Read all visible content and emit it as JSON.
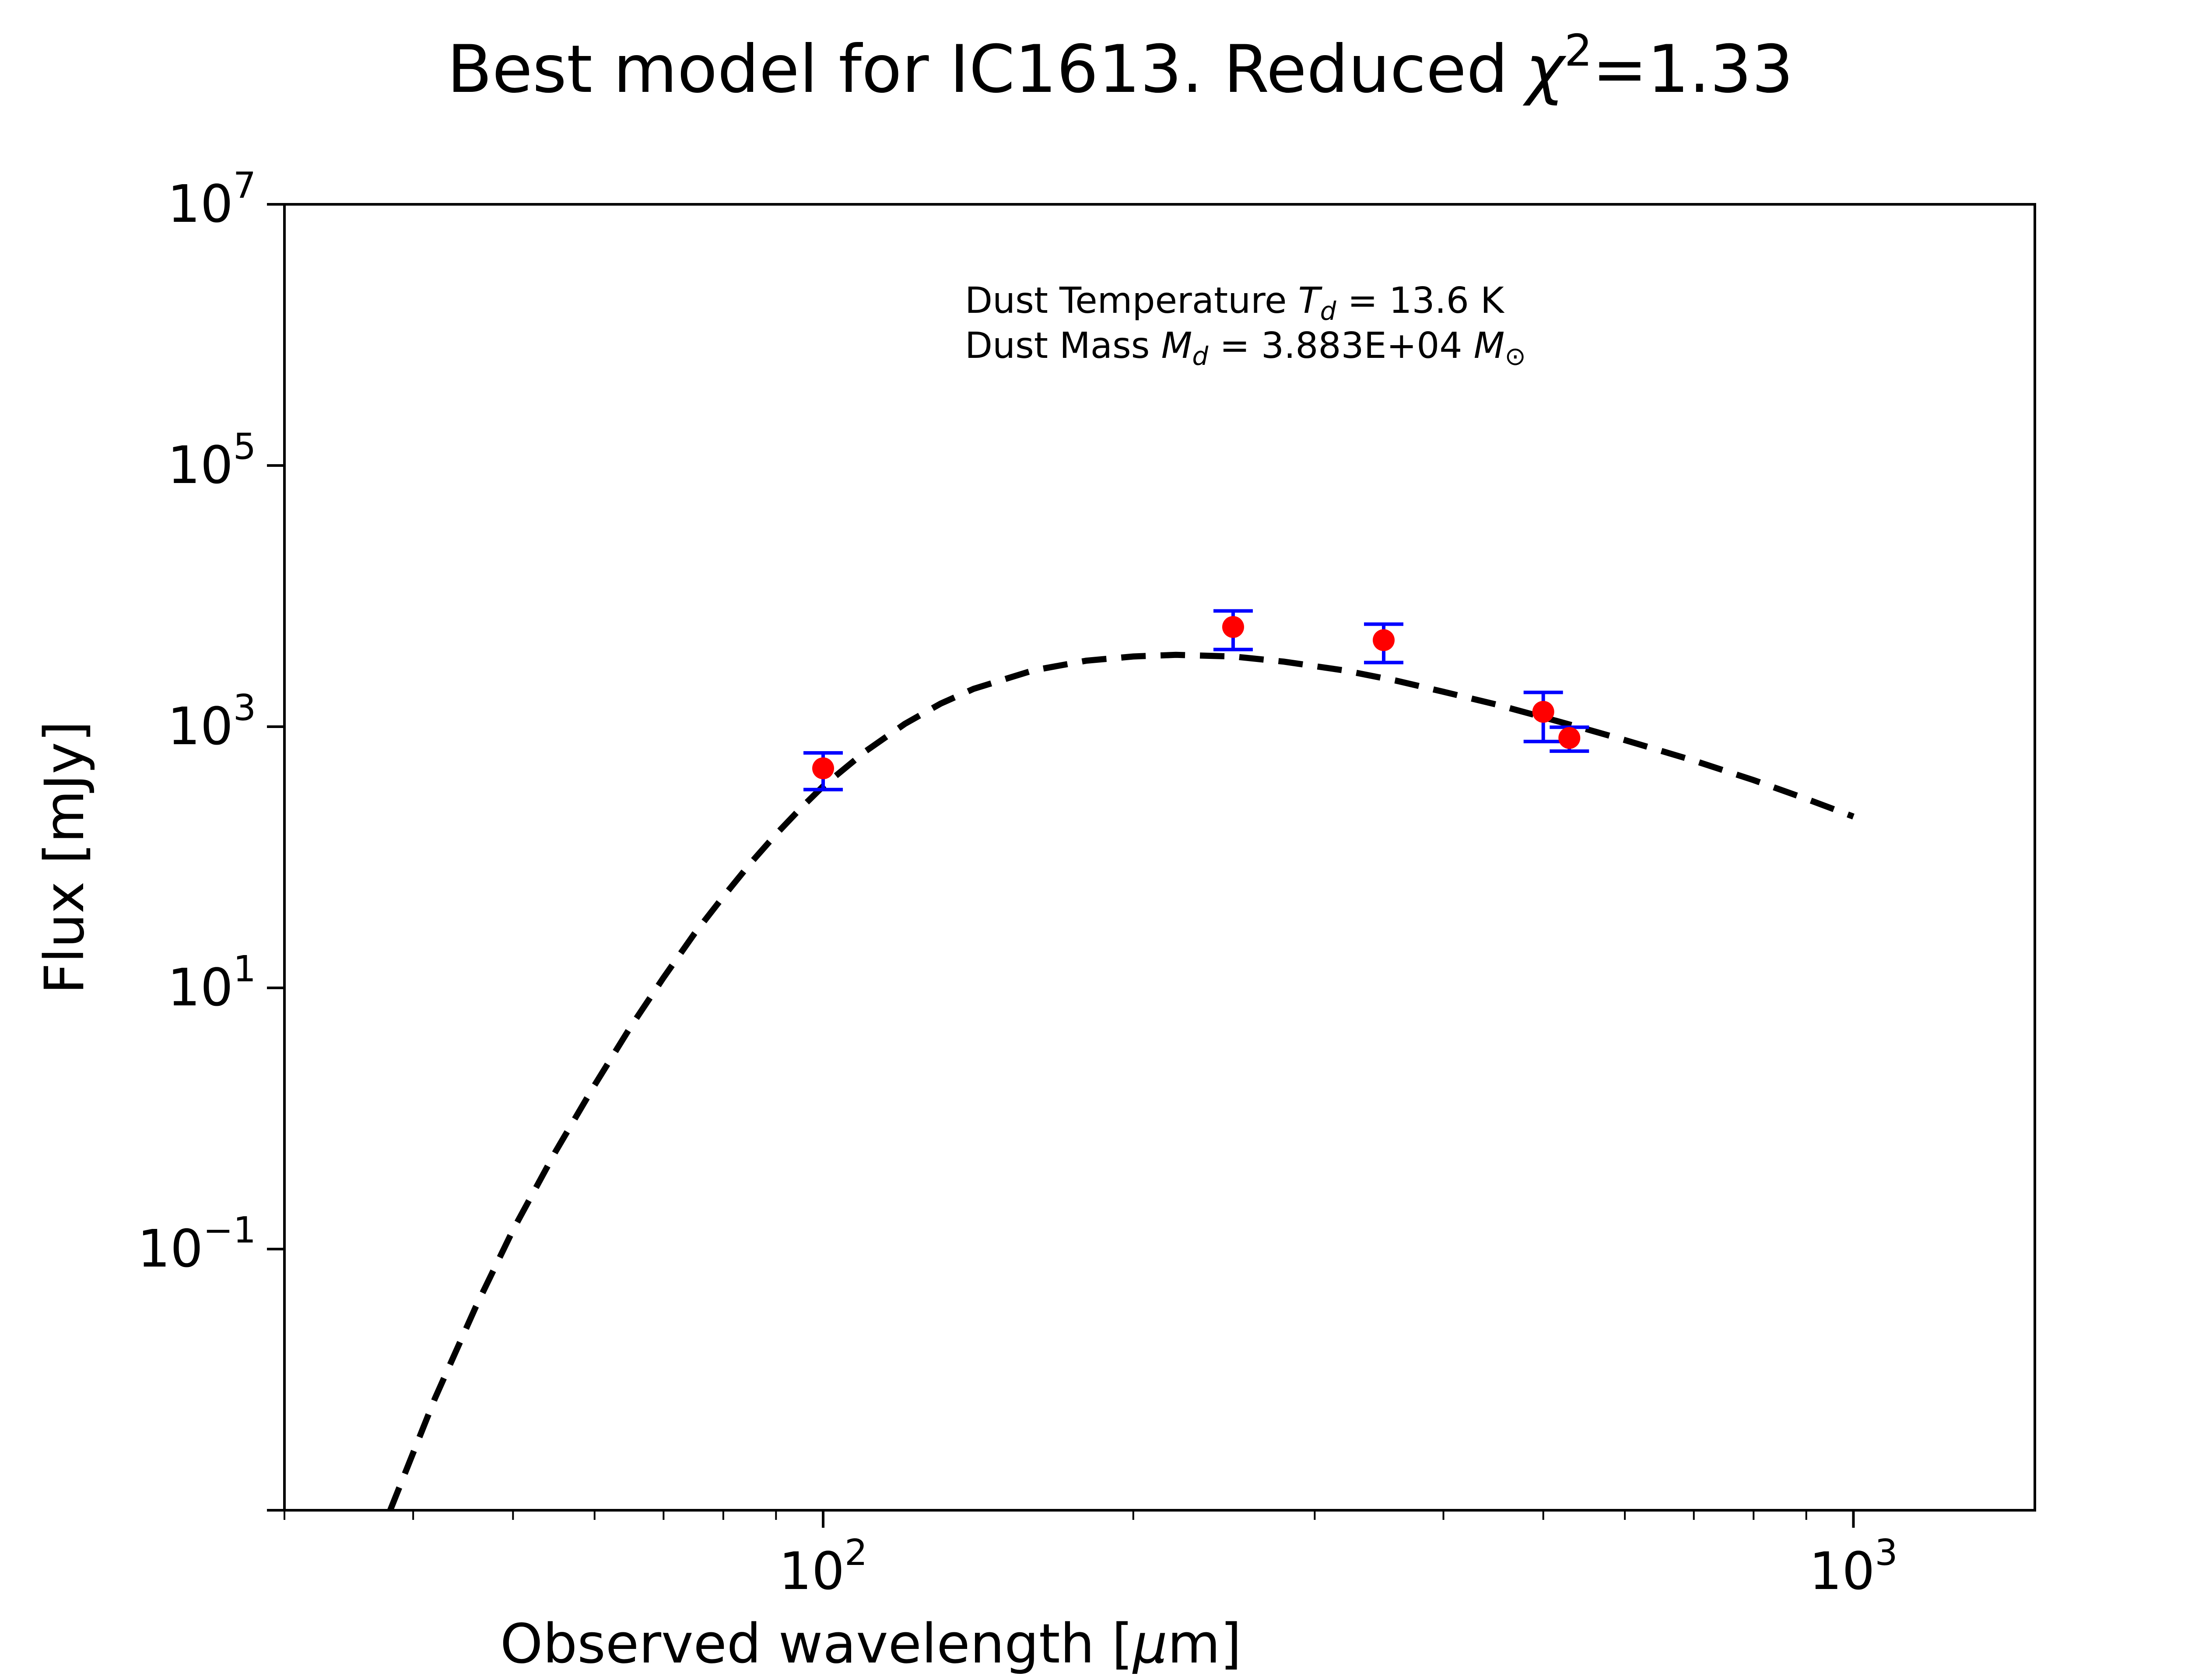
{
  "chart_data": {
    "type": "scatter",
    "title": "Best model for IC1613. Reduced",
    "title_symbol": "χ",
    "title_exponent": "2",
    "title_value": "=1.33",
    "xlabel": "Observed wavelength [",
    "xlabel_unit": "μ",
    "xlabel_suffix": "m]",
    "ylabel": "Flux [mJy]",
    "x_scale": "log",
    "y_scale": "log",
    "xlim": [
      30,
      1500
    ],
    "ylim": [
      0.001,
      10000000
    ],
    "grid": false,
    "x_ticks": [
      {
        "base": "10",
        "exp": "2",
        "value": 100
      },
      {
        "base": "10",
        "exp": "3",
        "value": 1000
      }
    ],
    "y_ticks": [
      {
        "base": "10",
        "exp": "7",
        "value": 10000000
      },
      {
        "base": "10",
        "exp": "5",
        "value": 100000
      },
      {
        "base": "10",
        "exp": "3",
        "value": 1000
      },
      {
        "base": "10",
        "exp": "1",
        "value": 10
      },
      {
        "base": "10",
        "exp": "−1",
        "value": 0.1
      }
    ],
    "annotation": {
      "line1_prefix": "Dust Temperature ",
      "line1_symbol": "T",
      "line1_sub": "d",
      "line1_value": " = 13.6 K",
      "line2_prefix": "Dust Mass ",
      "line2_symbol": "M",
      "line2_sub": "d",
      "line2_value": " = 3.883E+04 ",
      "line2_unit": "M",
      "line2_unit_sub": "⊙"
    },
    "observations": {
      "x": [
        100,
        250,
        350,
        500,
        530
      ],
      "y": [
        480,
        5800,
        4600,
        1300,
        820
      ],
      "y_err_low": [
        150,
        1900,
        1500,
        530,
        170
      ],
      "y_err_high": [
        150,
        1900,
        1500,
        530,
        170
      ],
      "marker_color": "#ff0000",
      "errorbar_color": "#0000ff"
    },
    "model": {
      "style": "dashed",
      "color": "#000000",
      "x": [
        38,
        42,
        46,
        50,
        55,
        60,
        65,
        70,
        75,
        80,
        85,
        90,
        95,
        100,
        110,
        120,
        130,
        140,
        160,
        180,
        200,
        220,
        250,
        280,
        320,
        360,
        400,
        450,
        500,
        550,
        600,
        700,
        800,
        900,
        1000
      ],
      "y": [
        0.001,
        0.0072,
        0.036,
        0.14,
        0.56,
        1.8,
        5.0,
        12,
        26,
        50,
        90,
        150,
        235,
        350,
        650,
        1050,
        1500,
        1950,
        2700,
        3200,
        3450,
        3550,
        3450,
        3150,
        2700,
        2250,
        1850,
        1480,
        1180,
        960,
        790,
        550,
        390,
        280,
        205
      ]
    },
    "colors": {
      "axes": "#000000",
      "background": "#ffffff"
    }
  }
}
